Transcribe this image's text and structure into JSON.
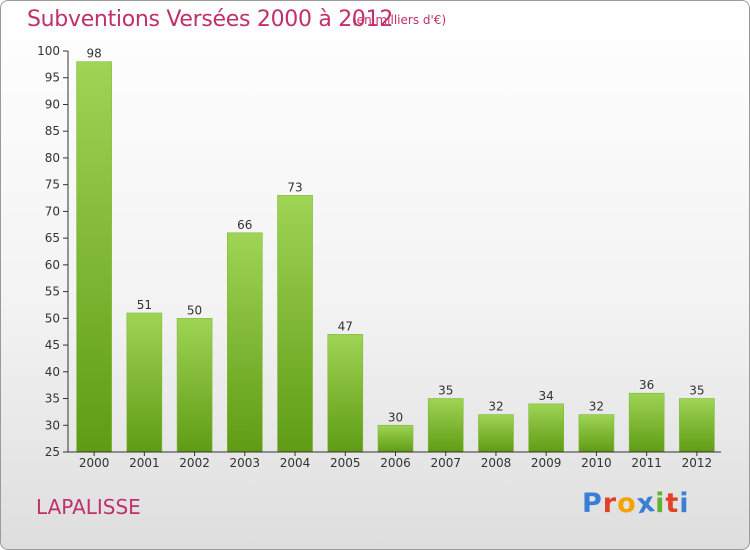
{
  "header": {
    "title": "Subventions Versées 2000 à 2012",
    "subtitle": "(en milliers d'€)"
  },
  "commune": "LAPALISSE",
  "logo": {
    "letters": [
      "P",
      "r",
      "o",
      "x",
      "i",
      "t",
      "i"
    ],
    "colors": [
      "#3a7fd5",
      "#e1412a",
      "#f5a300",
      "#3a7fd5",
      "#62b22f",
      "#e1412a",
      "#3a7fd5"
    ]
  },
  "chart_data": {
    "type": "bar",
    "categories": [
      "2000",
      "2001",
      "2002",
      "2003",
      "2004",
      "2005",
      "2006",
      "2007",
      "2008",
      "2009",
      "2010",
      "2011",
      "2012"
    ],
    "values": [
      98,
      51,
      50,
      66,
      73,
      47,
      30,
      35,
      32,
      34,
      32,
      36,
      35
    ],
    "ylim": [
      25,
      100
    ],
    "yticks": [
      25,
      30,
      35,
      40,
      45,
      50,
      55,
      60,
      65,
      70,
      75,
      80,
      85,
      90,
      95,
      100
    ],
    "title": "Subventions Versées 2000 à 2012",
    "xlabel": "",
    "ylabel": "",
    "grid": false,
    "colors": {
      "bar_top": "#9fd455",
      "bar_bottom": "#5f9c14",
      "axis": "#333333"
    }
  }
}
